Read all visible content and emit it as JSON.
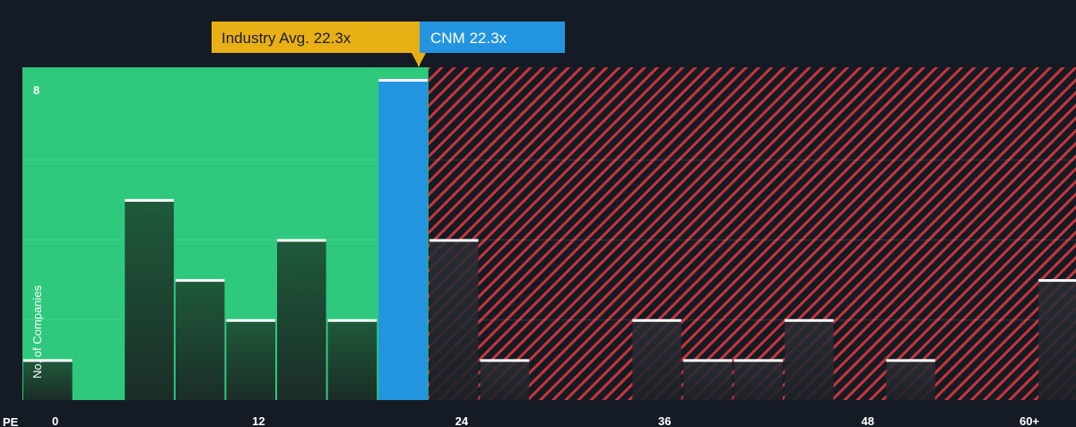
{
  "chart_data": {
    "type": "bar",
    "xlabel": "PE",
    "ylabel": "No. of Companies",
    "x_ticks": [
      "0",
      "12",
      "24",
      "36",
      "48",
      "60+"
    ],
    "y_ticks": [
      "8"
    ],
    "xlim": [
      0,
      61
    ],
    "ylim": [
      0,
      8
    ],
    "bin_width": 3,
    "bins": [
      {
        "start": 0,
        "value": 1
      },
      {
        "start": 3,
        "value": 0
      },
      {
        "start": 6,
        "value": 5
      },
      {
        "start": 9,
        "value": 3
      },
      {
        "start": 12,
        "value": 2
      },
      {
        "start": 15,
        "value": 4
      },
      {
        "start": 18,
        "value": 2
      },
      {
        "start": 21,
        "value": 8,
        "highlight": true
      },
      {
        "start": 24,
        "value": 4
      },
      {
        "start": 27,
        "value": 1
      },
      {
        "start": 30,
        "value": 0
      },
      {
        "start": 33,
        "value": 0
      },
      {
        "start": 36,
        "value": 2
      },
      {
        "start": 39,
        "value": 1
      },
      {
        "start": 42,
        "value": 1
      },
      {
        "start": 45,
        "value": 2
      },
      {
        "start": 48,
        "value": 0
      },
      {
        "start": 51,
        "value": 1
      },
      {
        "start": 54,
        "value": 0
      },
      {
        "start": 57,
        "value": 0
      },
      {
        "start": 60,
        "value": 3
      }
    ],
    "industry_avg": {
      "label": "Industry Avg. 22.3x",
      "value": 22.3
    },
    "company": {
      "label": "CNM 22.3x",
      "value": 22.3
    },
    "colors": {
      "background": "#151b24",
      "undervalued_zone": "#2ec97c",
      "overvalued_hatch": "#d9383a",
      "highlight_bar": "#2394e0",
      "industry_callout": "#e8b015",
      "company_callout": "#2394e0",
      "bar_top": "#1f5a3b",
      "bar_bottom": "#1a2a25",
      "bar_cap": "#ffffff"
    }
  }
}
